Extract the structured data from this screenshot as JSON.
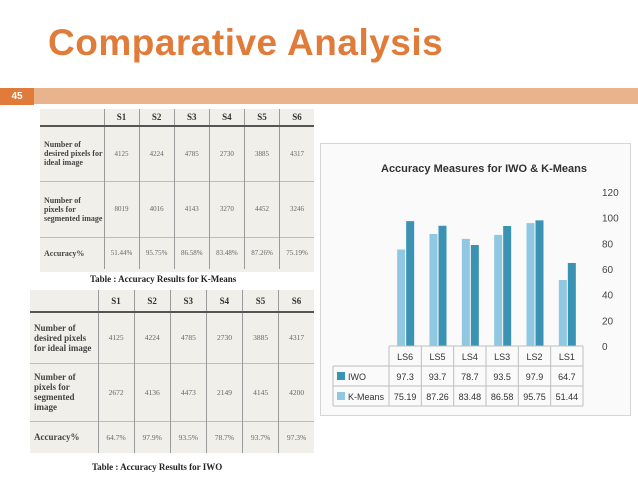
{
  "slide": {
    "title": "Comparative Analysis",
    "page_number": "45",
    "colors": {
      "title": "#e07b39",
      "band": "#e9b48c",
      "badge": "#e07b39"
    }
  },
  "tables": [
    {
      "caption": "Table : Accuracy Results for K-Means",
      "columns": [
        "",
        "S1",
        "S2",
        "S3",
        "S4",
        "S5",
        "S6"
      ],
      "rows": [
        {
          "label": "Number of desired pixels for ideal image",
          "cells": [
            "4125",
            "4224",
            "4785",
            "2730",
            "3885",
            "4317"
          ]
        },
        {
          "label": "Number of pixels for segmented image",
          "cells": [
            "8019",
            "4016",
            "4143",
            "3270",
            "4452",
            "3246"
          ]
        },
        {
          "label": "Accuracy%",
          "cells": [
            "51.44%",
            "95.75%",
            "86.58%",
            "83.48%",
            "87.26%",
            "75.19%"
          ]
        }
      ]
    },
    {
      "caption": "Table : Accuracy Results for IWO",
      "columns": [
        "",
        "S1",
        "S2",
        "S3",
        "S4",
        "S5",
        "S6"
      ],
      "rows": [
        {
          "label": "Number of desired pixels for ideal image",
          "cells": [
            "4125",
            "4224",
            "4785",
            "2730",
            "3885",
            "4317"
          ]
        },
        {
          "label": "Number of pixels for segmented image",
          "cells": [
            "2672",
            "4136",
            "4473",
            "2149",
            "4145",
            "4200"
          ]
        },
        {
          "label": "Accuracy%",
          "cells": [
            "64.7%",
            "97.9%",
            "93.5%",
            "78.7%",
            "93.7%",
            "97.3%"
          ]
        }
      ]
    }
  ],
  "chart_data": {
    "type": "bar",
    "title": "Accuracy Measures for IWO & K-Means",
    "categories": [
      "LS6",
      "LS5",
      "LS4",
      "LS3",
      "LS2",
      "LS1"
    ],
    "series": [
      {
        "name": "IWO",
        "values": [
          97.3,
          93.7,
          78.7,
          93.5,
          97.9,
          64.7
        ],
        "labels": [
          "97.3",
          "93.7",
          "78.7",
          "93.5",
          "97.9",
          "64.7"
        ],
        "color": "#3a93b2"
      },
      {
        "name": "K-Means",
        "values": [
          75.19,
          87.26,
          83.48,
          86.58,
          95.75,
          51.44
        ],
        "labels": [
          "75.19",
          "87.26",
          "83.48",
          "86.58",
          "95.75",
          "51.44"
        ],
        "color": "#8fc8e0"
      }
    ],
    "ylim": [
      0,
      120
    ],
    "yticks": [
      "0",
      "20",
      "40",
      "60",
      "80",
      "100",
      "120"
    ],
    "grid": false,
    "y_axis_side": "right",
    "legend": "data-table"
  }
}
